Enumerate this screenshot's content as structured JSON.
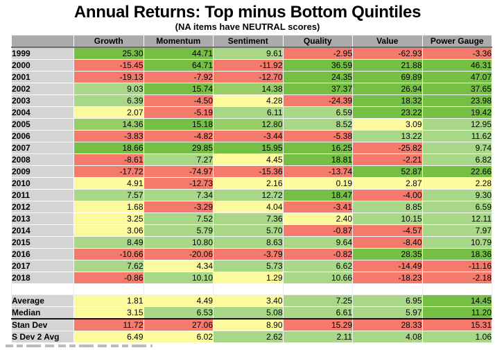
{
  "chart_data": {
    "type": "heatmap",
    "title": "Annual Returns: Top minus Bottom Quintiles",
    "subtitle": "(NA items have NEUTRAL scores)",
    "row_header_label": "",
    "columns": [
      "Growth",
      "Momentum",
      "Sentiment",
      "Quality",
      "Value",
      "Power Gauge"
    ],
    "rows": [
      {
        "label": "1999",
        "values": [
          25.3,
          44.71,
          9.61,
          -2.95,
          -62.93,
          -3.36
        ],
        "colors": [
          "g",
          "g",
          "lg",
          "r",
          "r",
          "r"
        ]
      },
      {
        "label": "2000",
        "values": [
          -15.45,
          64.71,
          -11.92,
          36.59,
          21.88,
          46.31
        ],
        "colors": [
          "r",
          "g",
          "r",
          "g",
          "g",
          "g"
        ]
      },
      {
        "label": "2001",
        "values": [
          -19.13,
          -7.92,
          -12.7,
          24.35,
          69.89,
          47.07
        ],
        "colors": [
          "r",
          "r",
          "r",
          "g",
          "g",
          "g"
        ]
      },
      {
        "label": "2002",
        "values": [
          9.03,
          15.74,
          14.38,
          37.37,
          26.94,
          37.65
        ],
        "colors": [
          "lg",
          "g",
          "mg",
          "g",
          "g",
          "g"
        ]
      },
      {
        "label": "2003",
        "values": [
          6.39,
          -4.5,
          4.28,
          -24.39,
          18.32,
          23.98
        ],
        "colors": [
          "lg",
          "r",
          "y",
          "r",
          "g",
          "g"
        ]
      },
      {
        "label": "2004",
        "values": [
          2.07,
          -5.19,
          6.11,
          6.59,
          23.22,
          19.42
        ],
        "colors": [
          "y",
          "r",
          "lg",
          "lg",
          "g",
          "g"
        ]
      },
      {
        "label": "2005",
        "values": [
          14.36,
          15.18,
          12.8,
          8.52,
          3.09,
          12.95
        ],
        "colors": [
          "mg",
          "g",
          "mg",
          "lg",
          "y",
          "lg"
        ]
      },
      {
        "label": "2006",
        "values": [
          -3.83,
          -4.82,
          -3.44,
          -5.38,
          13.22,
          11.62
        ],
        "colors": [
          "r",
          "r",
          "r",
          "r",
          "lg",
          "lg"
        ]
      },
      {
        "label": "2007",
        "values": [
          18.66,
          29.85,
          15.95,
          16.25,
          -25.82,
          9.74
        ],
        "colors": [
          "g",
          "g",
          "g",
          "g",
          "r",
          "lg"
        ]
      },
      {
        "label": "2008",
        "values": [
          -8.61,
          7.27,
          4.45,
          18.81,
          -2.21,
          6.82
        ],
        "colors": [
          "r",
          "lg",
          "y",
          "g",
          "r",
          "lg"
        ]
      },
      {
        "label": "2009",
        "values": [
          -17.72,
          -74.97,
          -15.36,
          -13.74,
          52.87,
          22.66
        ],
        "colors": [
          "r",
          "r",
          "r",
          "r",
          "g",
          "g"
        ]
      },
      {
        "label": "2010",
        "values": [
          4.91,
          -12.73,
          2.16,
          0.19,
          2.87,
          2.28
        ],
        "colors": [
          "y",
          "r",
          "y",
          "y",
          "y",
          "y"
        ]
      },
      {
        "label": "2011",
        "values": [
          7.57,
          7.34,
          12.72,
          18.47,
          -4.0,
          9.3
        ],
        "colors": [
          "lg",
          "lg",
          "lg",
          "g",
          "r",
          "lg"
        ]
      },
      {
        "label": "2012",
        "values": [
          1.68,
          -3.29,
          4.04,
          -3.41,
          8.85,
          6.59
        ],
        "colors": [
          "y",
          "r",
          "y",
          "r",
          "lg",
          "lg"
        ]
      },
      {
        "label": "2013",
        "values": [
          3.25,
          7.52,
          7.36,
          2.4,
          10.15,
          12.11
        ],
        "colors": [
          "y",
          "lg",
          "lg",
          "y",
          "lg",
          "lg"
        ]
      },
      {
        "label": "2014",
        "values": [
          3.06,
          5.79,
          5.7,
          -0.87,
          -4.57,
          7.97
        ],
        "colors": [
          "y",
          "lg",
          "lg",
          "r",
          "r",
          "lg"
        ]
      },
      {
        "label": "2015",
        "values": [
          8.49,
          10.8,
          8.63,
          9.64,
          -8.4,
          10.79
        ],
        "colors": [
          "lg",
          "lg",
          "lg",
          "lg",
          "r",
          "lg"
        ]
      },
      {
        "label": "2016",
        "values": [
          -10.66,
          -20.06,
          -3.79,
          -0.82,
          28.35,
          18.36
        ],
        "colors": [
          "r",
          "r",
          "r",
          "r",
          "g",
          "g"
        ]
      },
      {
        "label": "2017",
        "values": [
          7.62,
          4.34,
          5.73,
          6.62,
          -14.49,
          -11.16
        ],
        "colors": [
          "lg",
          "y",
          "lg",
          "lg",
          "r",
          "r"
        ]
      },
      {
        "label": "2018",
        "values": [
          -0.86,
          10.1,
          1.29,
          10.66,
          -18.23,
          -2.18
        ],
        "colors": [
          "r",
          "lg",
          "y",
          "lg",
          "r",
          "r"
        ]
      }
    ],
    "summary_rows": [
      {
        "label": "Average",
        "values": [
          1.81,
          4.49,
          3.4,
          7.25,
          6.95,
          14.45
        ],
        "colors": [
          "y",
          "y",
          "y",
          "lg",
          "lg",
          "g"
        ]
      },
      {
        "label": "Median",
        "values": [
          3.15,
          6.53,
          5.08,
          6.61,
          5.97,
          11.2
        ],
        "colors": [
          "y",
          "lg",
          "lg",
          "lg",
          "lg",
          "g"
        ]
      },
      {
        "label": "Stan Dev",
        "values": [
          11.72,
          27.06,
          8.9,
          15.29,
          28.33,
          15.31
        ],
        "colors": [
          "r",
          "r",
          "y",
          "r",
          "r",
          "r"
        ]
      },
      {
        "label": "S Dev 2 Avg",
        "values": [
          6.49,
          6.02,
          2.62,
          2.11,
          4.08,
          1.06
        ],
        "colors": [
          "y",
          "y",
          "lg",
          "lg",
          "lg",
          "lg"
        ]
      }
    ],
    "layout_hints": {
      "value_format": "2 decimals",
      "divider": "thick dark rule between Median and Stan Dev rows",
      "spacer_row_between": [
        "2018",
        "Average"
      ]
    }
  },
  "colors": {
    "strong_green": "#74BF44",
    "mid_green": "#97CE68",
    "light_green": "#A9D788",
    "yellow": "#FDFA9E",
    "red": "#F47A6C",
    "header_bg": "#ABABAB",
    "label_bg": "#D4D4D4",
    "divider": "#151515"
  }
}
